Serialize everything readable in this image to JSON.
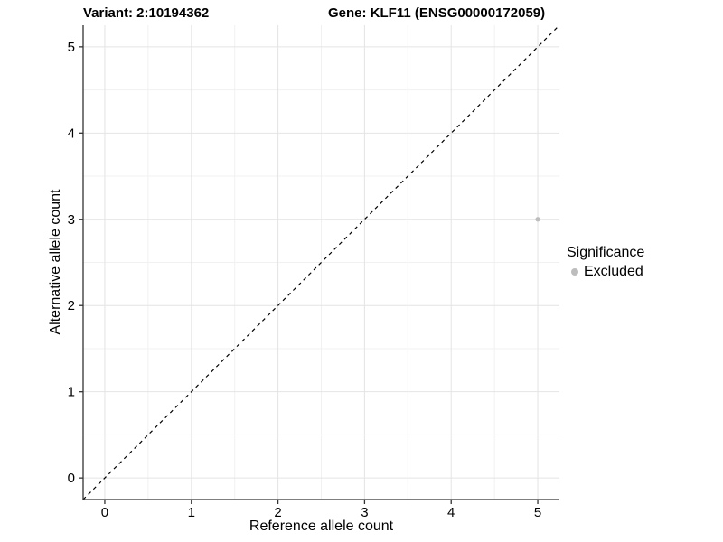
{
  "header": {
    "title_left": "Variant: 2:10194362",
    "title_right": "Gene: KLF11 (ENSG00000172059)"
  },
  "legend": {
    "title": "Significance",
    "items": [
      {
        "label": "Excluded",
        "color": "#bdbdbd"
      }
    ]
  },
  "chart_data": {
    "type": "scatter",
    "title_left": "Variant: 2:10194362",
    "title_right": "Gene: KLF11 (ENSG00000172059)",
    "xlabel": "Reference allele count",
    "ylabel": "Alternative allele count",
    "xlim": [
      -0.25,
      5.25
    ],
    "ylim": [
      -0.25,
      5.25
    ],
    "xticks": [
      0,
      1,
      2,
      3,
      4,
      5
    ],
    "yticks": [
      0,
      1,
      2,
      3,
      4,
      5
    ],
    "grid": {
      "major": true,
      "minor": true
    },
    "legend_position": "right",
    "series": [
      {
        "name": "Excluded",
        "color": "#bdbdbd",
        "points": [
          {
            "x": 5,
            "y": 3
          }
        ]
      }
    ],
    "reference_line": {
      "type": "identity",
      "style": "dashed",
      "color": "#000000"
    }
  },
  "colors": {
    "background": "#ffffff",
    "grid_major": "#e4e4e4",
    "grid_minor": "#f1f1f1",
    "axis": "#333333",
    "point": "#bdbdbd"
  }
}
